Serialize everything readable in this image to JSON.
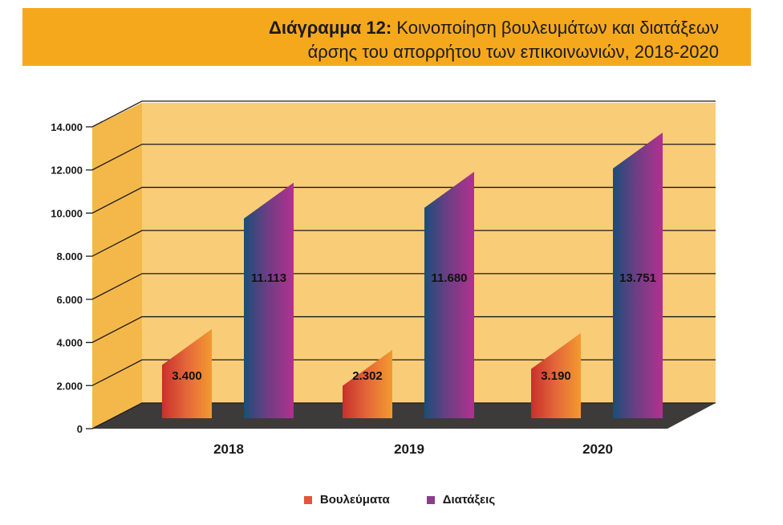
{
  "header": {
    "title_bold": "Διάγραμμα 12:",
    "title_line1": "Κοινοποίηση βουλευμάτων και διατάξεων",
    "title_line2": "άρσης του απορρήτου των επικοινωνιών, 2018-2020"
  },
  "colors": {
    "banner": "#f6a81c",
    "wall": "#f9cd78",
    "left_wall": "#f4b84a",
    "floor": "#3d3b3a",
    "series1_swatch": "#e0563a",
    "series2_swatch": "#8b3d8c"
  },
  "chart_data": {
    "type": "bar",
    "categories": [
      "2018",
      "2019",
      "2020"
    ],
    "series": [
      {
        "name": "Βουλεύματα",
        "values": [
          3400,
          2302,
          3190
        ],
        "labels": [
          "3.400",
          "2.302",
          "3.190"
        ]
      },
      {
        "name": "Διατάξεις",
        "values": [
          11113,
          11680,
          13751
        ],
        "labels": [
          "11.113",
          "11.680",
          "13.751"
        ]
      }
    ],
    "y_ticks": [
      {
        "value": 0,
        "label": "0"
      },
      {
        "value": 2000,
        "label": "2.000"
      },
      {
        "value": 4000,
        "label": "4.000"
      },
      {
        "value": 6000,
        "label": "6.000"
      },
      {
        "value": 8000,
        "label": "8.000"
      },
      {
        "value": 10000,
        "label": "10.000"
      },
      {
        "value": 12000,
        "label": "12.000"
      },
      {
        "value": 14000,
        "label": "14.000"
      }
    ],
    "ylim": [
      0,
      14000
    ],
    "grid": true,
    "legend_position": "bottom"
  }
}
